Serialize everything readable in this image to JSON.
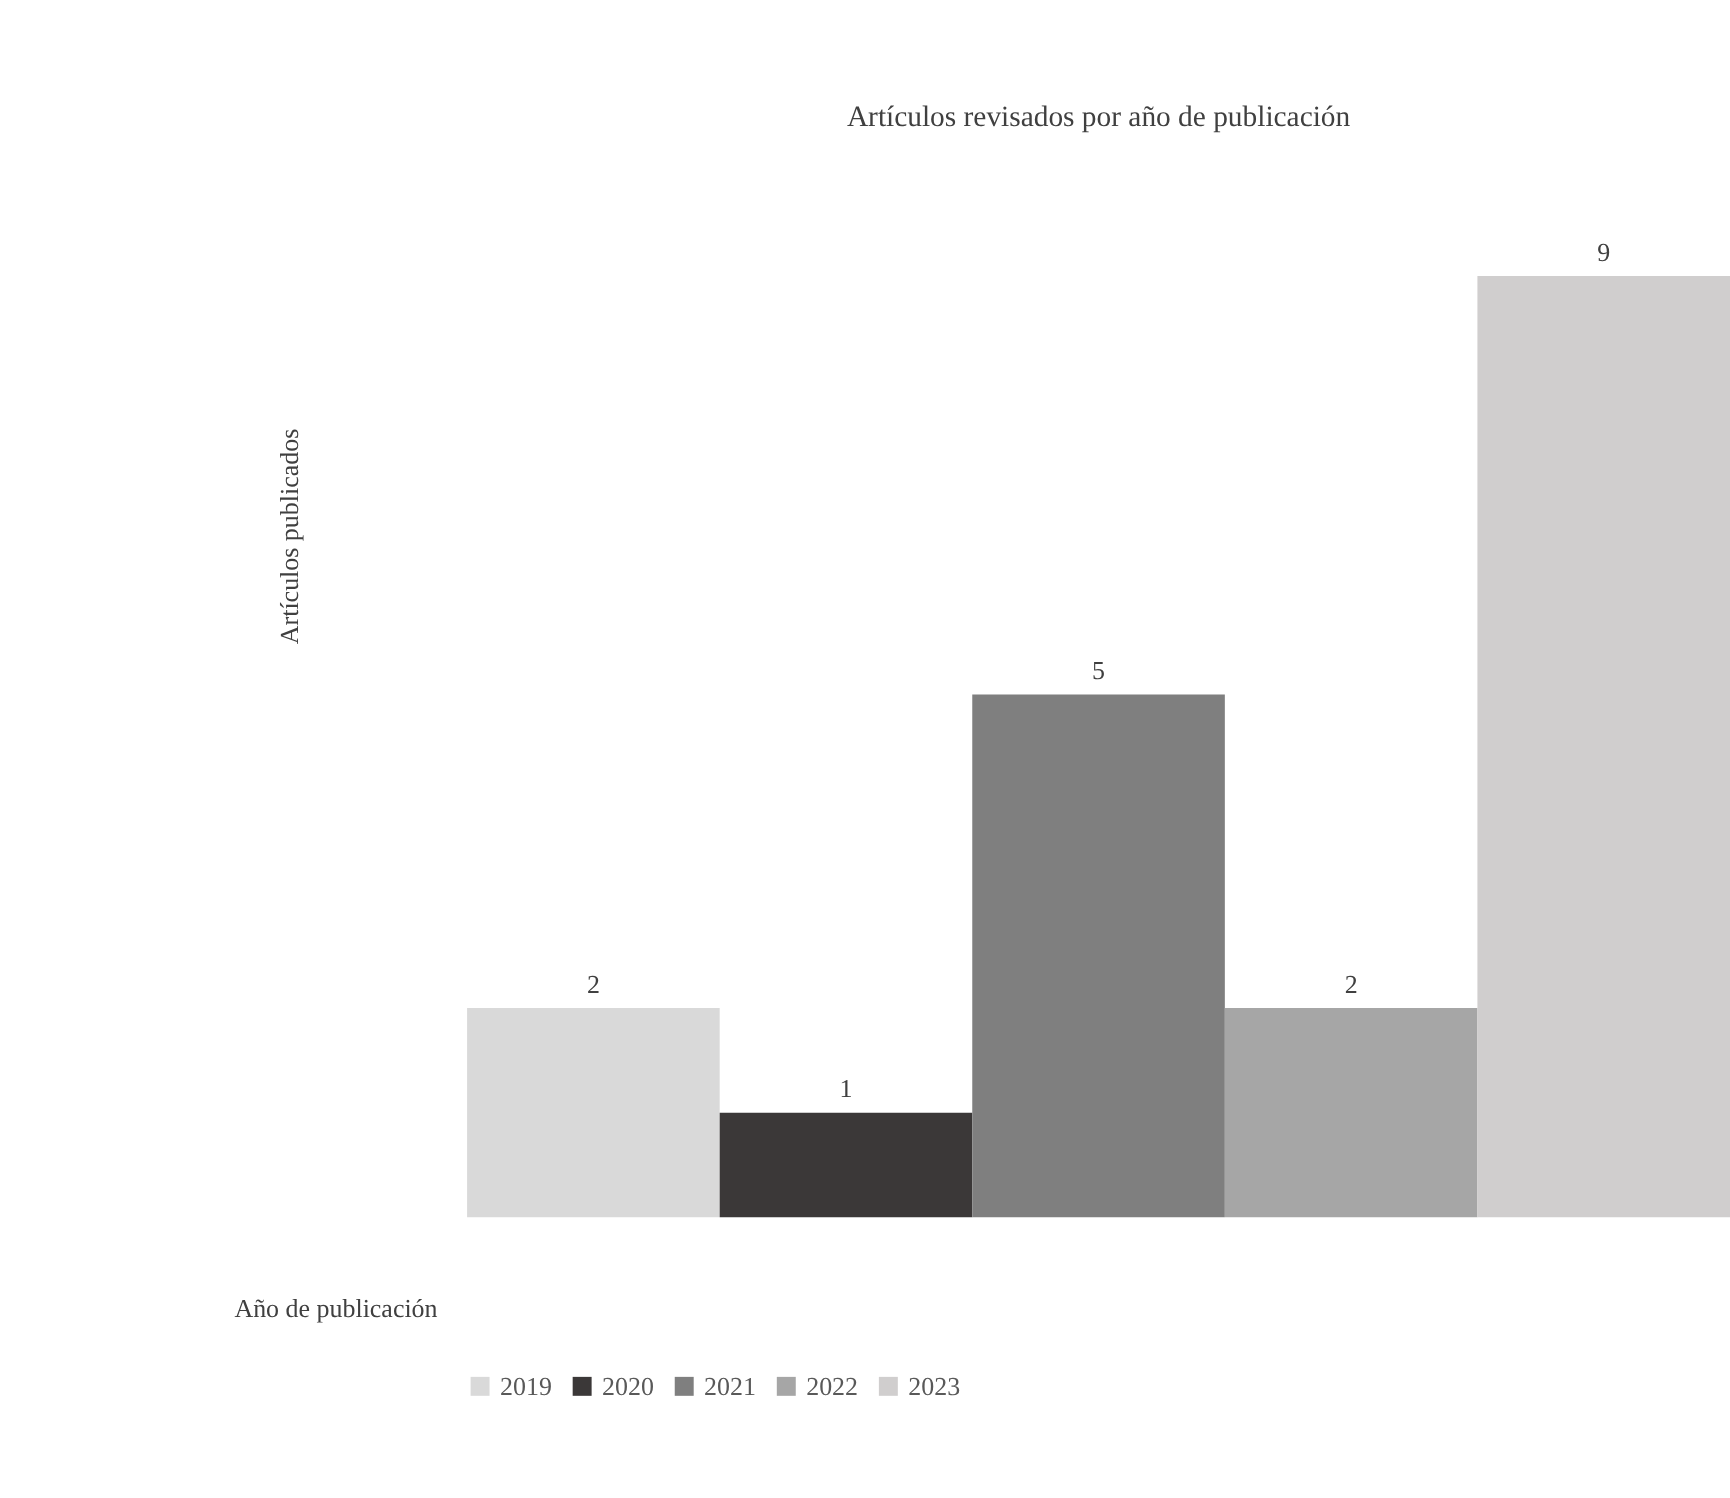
{
  "chart_data": {
    "type": "bar",
    "title": "Artículos  revisados  por año de publicación",
    "xlabel": "Año de publicación",
    "ylabel": "Artículos publicados",
    "categories": [
      null
    ],
    "series": [
      {
        "name": "2019",
        "color": "#d9d9d9",
        "values": [
          2
        ]
      },
      {
        "name": "2020",
        "color": "#3b3838",
        "values": [
          1
        ]
      },
      {
        "name": "2021",
        "color": "#7f7f7f",
        "values": [
          5
        ]
      },
      {
        "name": "2022",
        "color": "#a6a6a6",
        "values": [
          2
        ]
      },
      {
        "name": "2023",
        "color": "#d0cece",
        "values": [
          9
        ]
      }
    ],
    "data_labels": true,
    "legend": "bottom",
    "grid": false
  }
}
